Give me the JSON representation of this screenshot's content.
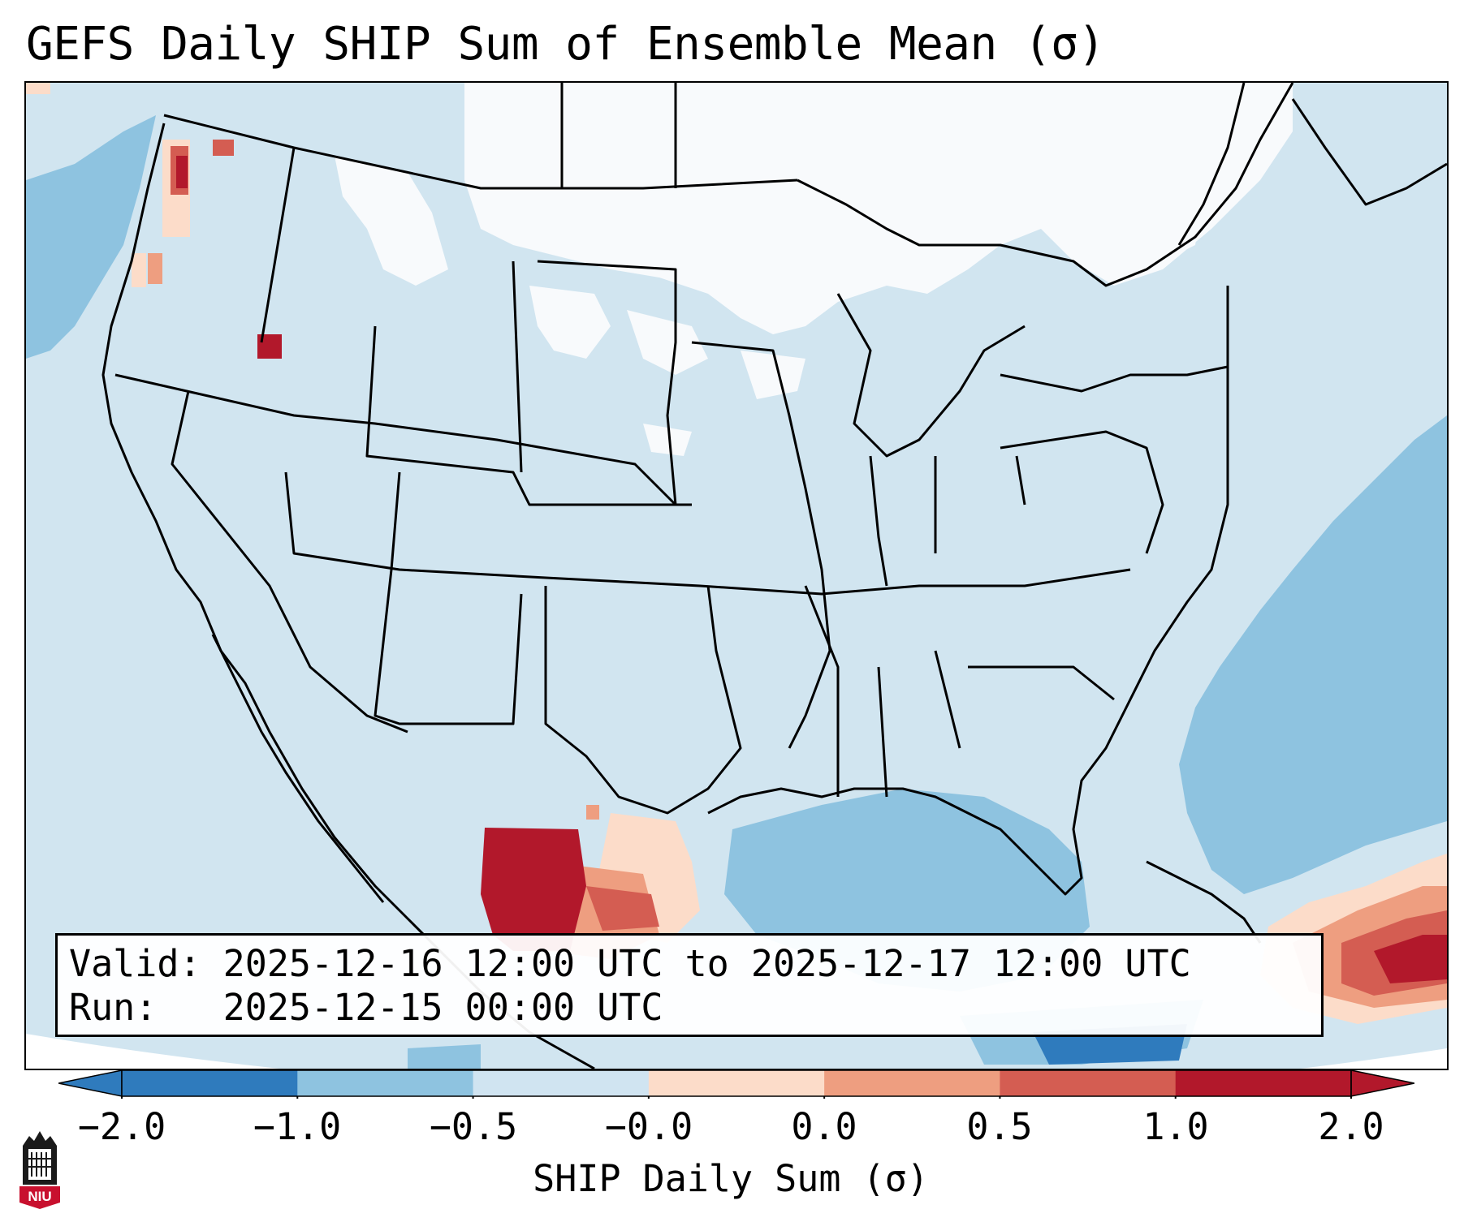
{
  "title": "GEFS Daily SHIP Sum of Ensemble Mean (σ)",
  "info": {
    "valid": "Valid: 2025-12-16 12:00 UTC to 2025-12-17 12:00 UTC",
    "run": "Run:   2025-12-15 00:00 UTC"
  },
  "colorbar": {
    "label": "SHIP Daily Sum (σ)",
    "ticks": [
      "−2.0",
      "−1.0",
      "−0.5",
      "−0.0",
      "0.0",
      "0.5",
      "1.0",
      "2.0"
    ],
    "colors": [
      "#2f7bbd",
      "#8ec3e0",
      "#d0e4f1",
      "#f8fafc",
      "#fcdcc9",
      "#ee9e80",
      "#d45d52",
      "#b2182b"
    ],
    "extend": "both"
  },
  "logo": {
    "name": "niu-logo",
    "text": "NIU"
  }
}
